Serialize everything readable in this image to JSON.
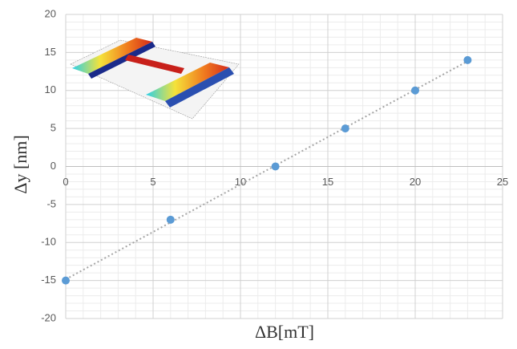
{
  "chart_data": {
    "type": "scatter",
    "x_label": "ΔB[mT]",
    "y_label": "Δy [nm]",
    "x": [
      0,
      6,
      12,
      16,
      20,
      23
    ],
    "values": [
      -15,
      -7,
      0,
      5,
      10,
      14
    ],
    "color": "#5b9bd5",
    "trendline": "linear",
    "xlim": [
      0,
      25
    ],
    "xticks": [
      0,
      5,
      10,
      15,
      20,
      25
    ],
    "ylim": [
      -20,
      20
    ],
    "yticks": [
      -20,
      -15,
      -10,
      -5,
      0,
      5,
      10,
      15,
      20
    ],
    "grid": true,
    "minor_grid": true
  }
}
